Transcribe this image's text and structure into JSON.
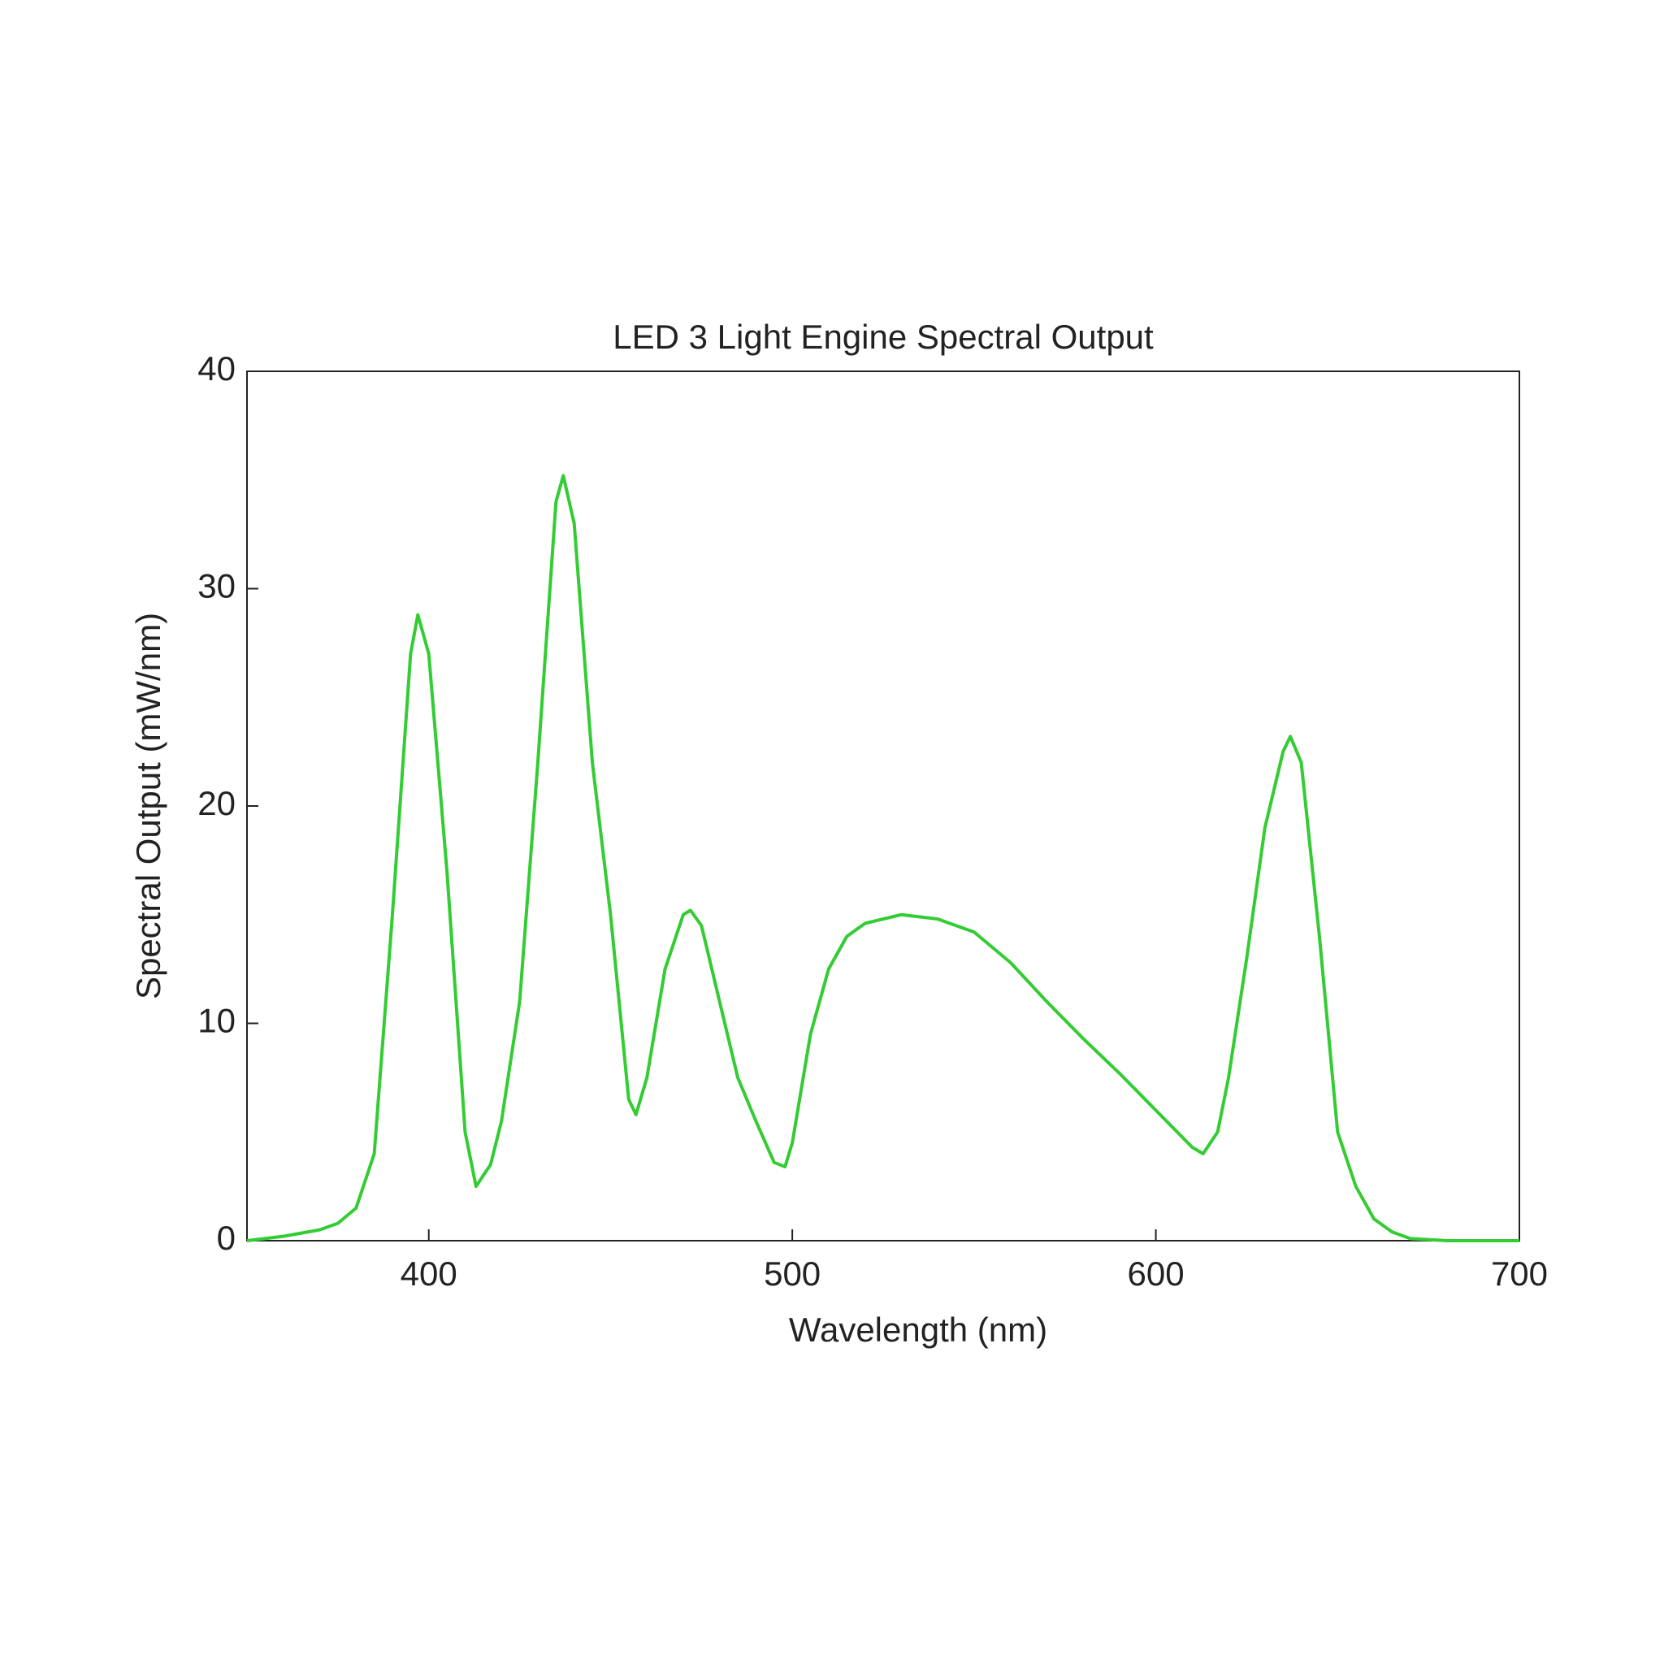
{
  "chart_data": {
    "type": "line",
    "title": "LED 3 Light Engine Spectral Output",
    "x_label": "Wavelength (nm)",
    "y_label": "Spectral Output (mW/nm)",
    "xlim": [
      350,
      700
    ],
    "ylim": [
      0,
      40
    ],
    "xticks": [
      400,
      500,
      600,
      700
    ],
    "yticks": [
      0,
      10,
      20,
      30,
      40
    ],
    "series": [
      {
        "color": "#33cc33",
        "x": [
          350,
          360,
          370,
          375,
          380,
          385,
          390,
          395,
          397,
          400,
          405,
          410,
          413,
          417,
          420,
          425,
          430,
          435,
          437,
          440,
          445,
          450,
          455,
          457,
          460,
          465,
          470,
          472,
          475,
          480,
          485,
          490,
          495,
          498,
          500,
          505,
          510,
          515,
          520,
          530,
          540,
          550,
          560,
          570,
          580,
          590,
          600,
          610,
          613,
          617,
          620,
          625,
          630,
          635,
          637,
          640,
          645,
          650,
          655,
          660,
          665,
          670,
          680,
          700
        ],
        "values": [
          0,
          0.2,
          0.5,
          0.8,
          1.5,
          4,
          15,
          27,
          28.8,
          27,
          17,
          5,
          2.5,
          3.5,
          5.5,
          11,
          22,
          34,
          35.2,
          33,
          22,
          15,
          6.5,
          5.8,
          7.5,
          12.5,
          15,
          15.2,
          14.5,
          11,
          7.5,
          5.5,
          3.6,
          3.4,
          4.5,
          9.5,
          12.5,
          14,
          14.6,
          15,
          14.8,
          14.2,
          12.8,
          11,
          9.3,
          7.7,
          6,
          4.3,
          4,
          5,
          7.5,
          13,
          19,
          22.5,
          23.2,
          22,
          14,
          5,
          2.5,
          1,
          0.4,
          0.1,
          0,
          0
        ]
      }
    ]
  }
}
